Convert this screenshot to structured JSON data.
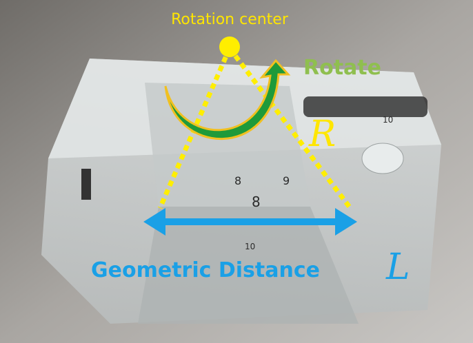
{
  "annotations": {
    "rotation_center": "Rotation center",
    "rotate": "Rotate",
    "radius": "R",
    "distance_label": "Geometric Distance",
    "distance_symbol": "L"
  },
  "block_marks": [
    "8",
    "9",
    "8",
    "10",
    "10"
  ]
}
